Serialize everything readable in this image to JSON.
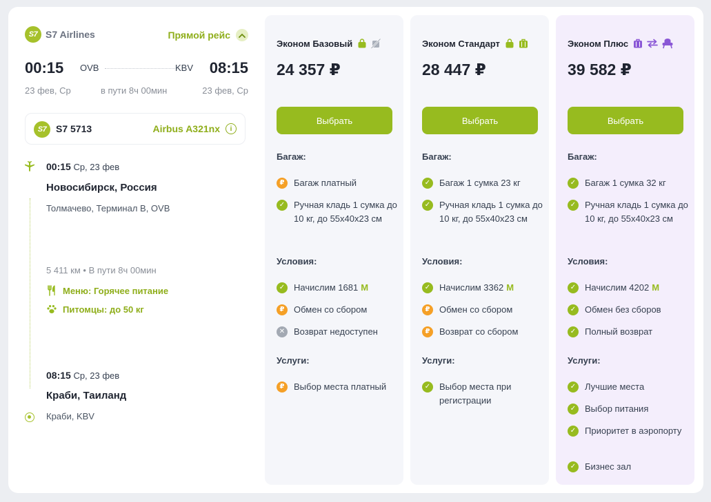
{
  "flight": {
    "airline": "S7 Airlines",
    "logo_text": "S7",
    "direct_label": "Прямой рейс",
    "dep_time": "00:15",
    "arr_time": "08:15",
    "from_code": "OVB",
    "to_code": "KBV",
    "dep_date": "23 фев, Ср",
    "arr_date": "23 фев, Ср",
    "duration": "в пути 8ч 00мин",
    "flight_number": "S7 5713",
    "aircraft": "Airbus A321nx",
    "departure": {
      "time": "00:15",
      "date": "Ср, 23 фев",
      "city": "Новосибирск, Россия",
      "airport": "Толмачево, Терминал B, OVB"
    },
    "stats": "5 411 км • В пути 8ч 00мин",
    "amenities": [
      {
        "icon": "fork-knife-icon",
        "label": "Меню: Горячее питание"
      },
      {
        "icon": "paw-icon",
        "label": "Питомцы: до 50 кг"
      }
    ],
    "arrival": {
      "time": "08:15",
      "date": "Ср, 23 фев",
      "city": "Краби, Таиланд",
      "airport": "Краби, KBV"
    }
  },
  "labels": {
    "choose": "Выбрать",
    "baggage": "Багаж:",
    "conditions": "Условия:",
    "services": "Услуги:"
  },
  "colors": {
    "accent": "#97bb1f",
    "paid": "#f5a027",
    "unavailable": "#a3a9b3",
    "plus_bg": "#f4eefc",
    "plus_icon": "#8a57d6"
  },
  "fares": [
    {
      "name": "Эконом Базовый",
      "price": "24 357 ₽",
      "icons": [
        "hand-bag-icon",
        "no-baggage-icon"
      ],
      "baggage": [
        {
          "status": "pay",
          "text": "Багаж платный"
        },
        {
          "status": "ok",
          "text": "Ручная кладь 1 сумка до 10 кг, до 55х40х23 см"
        }
      ],
      "conditions": [
        {
          "status": "ok",
          "text": "Начислим 1681",
          "miles": "M"
        },
        {
          "status": "pay",
          "text": "Обмен со сбором"
        },
        {
          "status": "no",
          "text": "Возврат недоступен"
        }
      ],
      "services": [
        {
          "status": "pay",
          "text": "Выбор места платный"
        }
      ]
    },
    {
      "name": "Эконом Стандарт",
      "price": "28 447 ₽",
      "icons": [
        "hand-bag-icon",
        "suitcase-icon"
      ],
      "baggage": [
        {
          "status": "ok",
          "text": "Багаж 1 сумка 23 кг"
        },
        {
          "status": "ok",
          "text": "Ручная кладь 1 сумка до 10 кг, до 55х40х23 см"
        }
      ],
      "conditions": [
        {
          "status": "ok",
          "text": "Начислим 3362",
          "miles": "M"
        },
        {
          "status": "pay",
          "text": "Обмен со сбором"
        },
        {
          "status": "pay",
          "text": "Возврат со сбором"
        }
      ],
      "services": [
        {
          "status": "ok",
          "text": "Выбор места при регистрации"
        }
      ]
    },
    {
      "name": "Эконом Плюс",
      "price": "39 582 ₽",
      "icons": [
        "suitcase-icon",
        "exchange-icon",
        "seat-icon"
      ],
      "baggage": [
        {
          "status": "ok",
          "text": "Багаж 1 сумка 32 кг"
        },
        {
          "status": "ok",
          "text": "Ручная кладь 1 сумка до 10 кг, до 55х40х23 см"
        }
      ],
      "conditions": [
        {
          "status": "ok",
          "text": "Начислим 4202",
          "miles": "M"
        },
        {
          "status": "ok",
          "text": "Обмен без сборов"
        },
        {
          "status": "ok",
          "text": "Полный возврат"
        }
      ],
      "services": [
        {
          "status": "ok",
          "text": "Лучшие места"
        },
        {
          "status": "ok",
          "text": "Выбор питания"
        },
        {
          "status": "ok",
          "text": "Приоритет в аэропорту"
        },
        {
          "status": "ok",
          "text": "Бизнес зал"
        }
      ]
    }
  ]
}
